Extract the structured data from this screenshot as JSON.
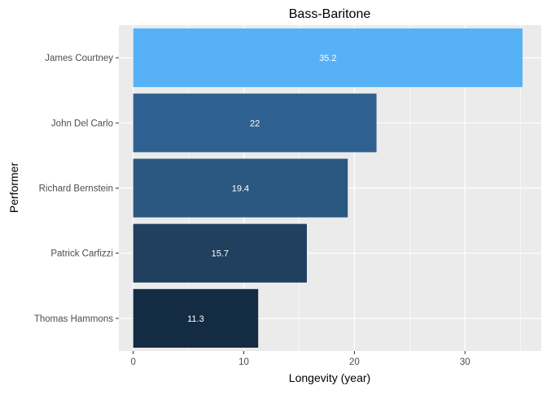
{
  "chart_data": {
    "type": "bar",
    "orientation": "horizontal",
    "title": "Bass-Baritone",
    "xlabel": "Longevity (year)",
    "ylabel": "Performer",
    "xlim": [
      -1.3,
      36.9
    ],
    "x_ticks": [
      0,
      10,
      20,
      30
    ],
    "grid": true,
    "legend": "none",
    "categories": [
      "James Courtney",
      "John Del Carlo",
      "Richard Bernstein",
      "Patrick Carfizzi",
      "Thomas Hammons"
    ],
    "values": [
      35.2,
      22,
      19.4,
      15.7,
      11.3
    ],
    "data_labels": [
      "35.2",
      "22",
      "19.4",
      "15.7",
      "11.3"
    ],
    "bar_colors": [
      "#56B1F7",
      "#2E6190",
      "#2A5880",
      "#213F5F",
      "#132B43"
    ],
    "panel_background": "#EBEBEB",
    "grid_color": "#FFFFFF"
  }
}
